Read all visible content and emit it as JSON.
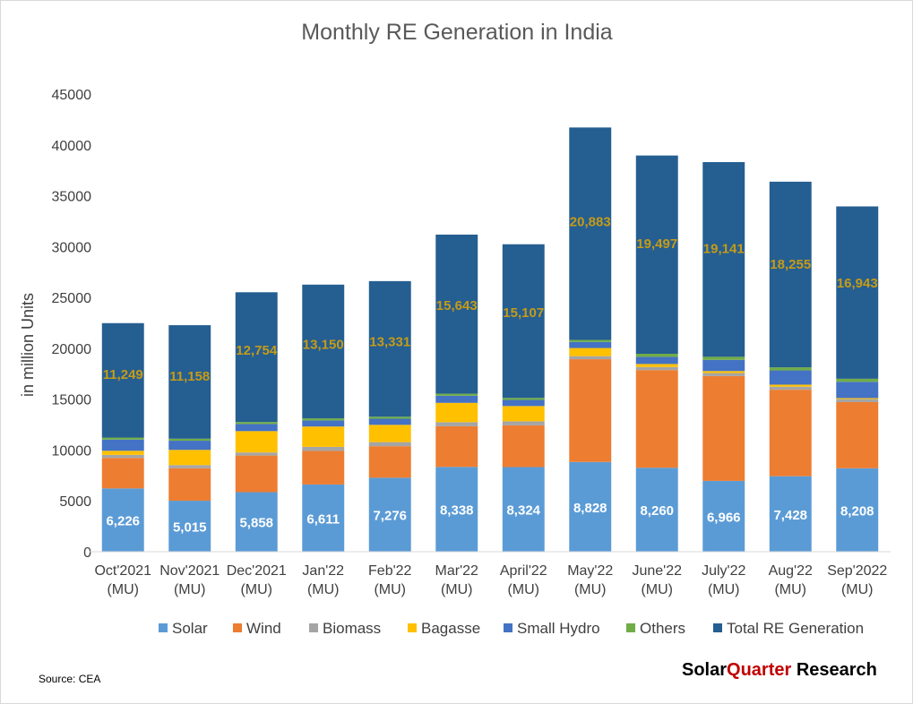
{
  "chart_data": {
    "type": "bar",
    "stacked": true,
    "title": "Monthly RE Generation in India",
    "ylabel": "in million Units",
    "ylim": [
      0,
      45000
    ],
    "yticks": [
      0,
      5000,
      10000,
      15000,
      20000,
      25000,
      30000,
      35000,
      40000,
      45000
    ],
    "categories": [
      [
        "Oct'2021",
        "(MU)"
      ],
      [
        "Nov'2021",
        "(MU)"
      ],
      [
        "Dec'2021",
        "(MU)"
      ],
      [
        "Jan'22",
        "(MU)"
      ],
      [
        "Feb'22",
        "(MU)"
      ],
      [
        "Mar'22",
        "(MU)"
      ],
      [
        "April'22",
        "(MU)"
      ],
      [
        "May'22",
        "(MU)"
      ],
      [
        "June'22",
        "(MU)"
      ],
      [
        "July'22",
        "(MU)"
      ],
      [
        "Aug'22",
        "(MU)"
      ],
      [
        "Sep'2022",
        "(MU)"
      ]
    ],
    "series": [
      {
        "name": "Solar",
        "color": "#5b9bd5",
        "values": [
          6226,
          5015,
          5858,
          6611,
          7276,
          8338,
          8324,
          8828,
          8260,
          6966,
          7428,
          8208
        ],
        "labels": [
          "6,226",
          "5,015",
          "5,858",
          "6,611",
          "7,276",
          "8,338",
          "8,324",
          "8,828",
          "8,260",
          "6,966",
          "7,428",
          "8,208"
        ]
      },
      {
        "name": "Wind",
        "color": "#ed7d31",
        "values": [
          3000,
          3200,
          3600,
          3300,
          3100,
          4000,
          4100,
          10100,
          9600,
          10300,
          8500,
          6500
        ]
      },
      {
        "name": "Biomass",
        "color": "#a5a5a5",
        "values": [
          300,
          300,
          300,
          400,
          400,
          400,
          400,
          300,
          300,
          300,
          300,
          300
        ]
      },
      {
        "name": "Bagasse",
        "color": "#ffc000",
        "values": [
          400,
          1500,
          2100,
          2000,
          1700,
          1900,
          1500,
          800,
          300,
          200,
          200,
          100
        ]
      },
      {
        "name": "Small Hydro",
        "color": "#4472c4",
        "values": [
          1100,
          900,
          700,
          600,
          600,
          700,
          600,
          600,
          700,
          1100,
          1400,
          1600
        ]
      },
      {
        "name": "Others",
        "color": "#70ad47",
        "values": [
          200,
          200,
          200,
          200,
          200,
          200,
          200,
          200,
          300,
          300,
          300,
          300
        ]
      },
      {
        "name": "Total RE Generation",
        "color": "#255e91",
        "values": [
          11249,
          11158,
          12754,
          13150,
          13331,
          15643,
          15107,
          20883,
          19497,
          19141,
          18255,
          16943
        ],
        "labels": [
          "11,249",
          "11,158",
          "12,754",
          "13,150",
          "13,331",
          "15,643",
          "15,107",
          "20,883",
          "19,497",
          "19,141",
          "18,255",
          "16,943"
        ]
      }
    ],
    "legend_position": "bottom",
    "grid": false
  },
  "footer": {
    "source": "Source: CEA",
    "brand_part1": "Solar",
    "brand_part2": "Quarter",
    "brand_part3": " Research"
  }
}
